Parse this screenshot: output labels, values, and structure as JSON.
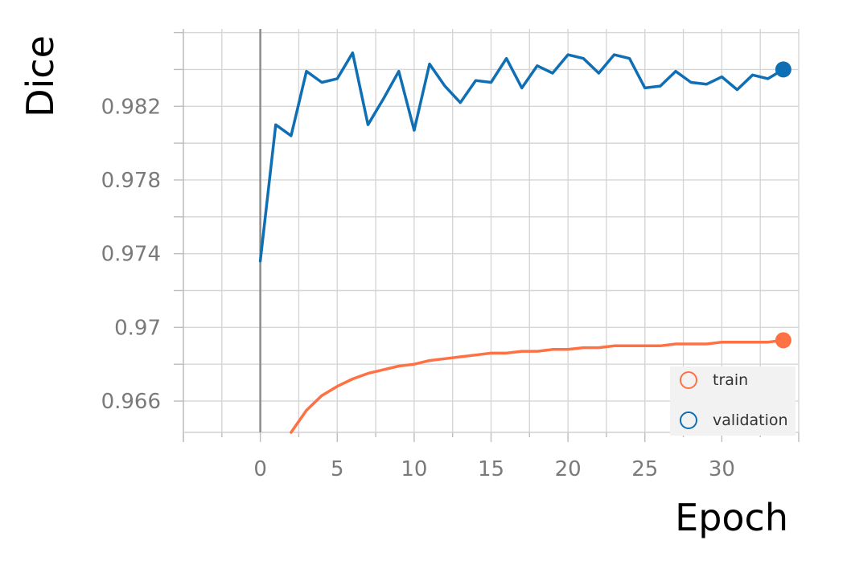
{
  "chart_data": {
    "type": "line",
    "title": "",
    "xlabel": "Epoch",
    "ylabel": "Dice",
    "xlim": [
      -5,
      35
    ],
    "ylim": [
      0.9643,
      0.9862
    ],
    "x_ticks": [
      0,
      5,
      10,
      15,
      20,
      25,
      30
    ],
    "x_tick_labels": [
      "0",
      "5",
      "10",
      "15",
      "20",
      "25",
      "30"
    ],
    "y_ticks": [
      0.966,
      0.97,
      0.974,
      0.978,
      0.982
    ],
    "y_tick_labels": [
      "0.966",
      "0.97",
      "0.974",
      "0.978",
      "0.982"
    ],
    "grid": true,
    "legend_position": "bottom-right",
    "series": [
      {
        "name": "train",
        "color": "#ff7043",
        "x": [
          2,
          3,
          4,
          5,
          6,
          7,
          8,
          9,
          10,
          11,
          12,
          13,
          14,
          15,
          16,
          17,
          18,
          19,
          20,
          21,
          22,
          23,
          24,
          25,
          26,
          27,
          28,
          29,
          30,
          31,
          32,
          33,
          34
        ],
        "values": [
          0.9643,
          0.9655,
          0.9663,
          0.9668,
          0.9672,
          0.9675,
          0.9677,
          0.9679,
          0.968,
          0.9682,
          0.9683,
          0.9684,
          0.9685,
          0.9686,
          0.9686,
          0.9687,
          0.9687,
          0.9688,
          0.9688,
          0.9689,
          0.9689,
          0.969,
          0.969,
          0.969,
          0.969,
          0.9691,
          0.9691,
          0.9691,
          0.9692,
          0.9692,
          0.9692,
          0.9692,
          0.9693
        ]
      },
      {
        "name": "validation",
        "color": "#0f6fb5",
        "x": [
          0,
          1,
          2,
          3,
          4,
          5,
          6,
          7,
          8,
          9,
          10,
          11,
          12,
          13,
          14,
          15,
          16,
          17,
          18,
          19,
          20,
          21,
          22,
          23,
          24,
          25,
          26,
          27,
          28,
          29,
          30,
          31,
          32,
          33,
          34
        ],
        "values": [
          0.9736,
          0.981,
          0.9804,
          0.9839,
          0.9833,
          0.9835,
          0.9849,
          0.981,
          0.9824,
          0.9839,
          0.9807,
          0.9843,
          0.9831,
          0.9822,
          0.9834,
          0.9833,
          0.9846,
          0.983,
          0.9842,
          0.9838,
          0.9848,
          0.9846,
          0.9838,
          0.9848,
          0.9846,
          0.983,
          0.9831,
          0.9839,
          0.9833,
          0.9832,
          0.9836,
          0.9829,
          0.9837,
          0.9835,
          0.984
        ]
      }
    ]
  }
}
